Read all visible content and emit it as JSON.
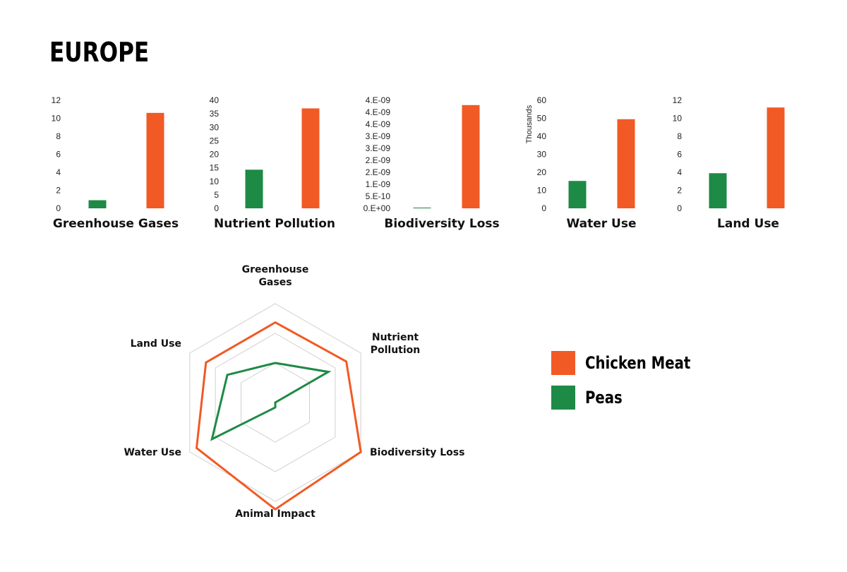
{
  "page": {
    "title": "EUROPE"
  },
  "colors": {
    "chicken": "#f15a24",
    "peas": "#1d8a45",
    "grid": "#d0d0d0"
  },
  "legend": [
    {
      "name": "Chicken Meat",
      "color": "#f15a24"
    },
    {
      "name": "Peas",
      "color": "#1d8a45"
    }
  ],
  "chart_data": [
    {
      "type": "bar",
      "title": "Greenhouse Gases",
      "categories": [
        "Peas",
        "Chicken Meat"
      ],
      "values": [
        0.9,
        10.6
      ],
      "ylim": [
        0,
        12
      ],
      "yticks": [
        "0",
        "2",
        "4",
        "6",
        "8",
        "10",
        "12"
      ],
      "ylabel": ""
    },
    {
      "type": "bar",
      "title": "Nutrient Pollution",
      "categories": [
        "Peas",
        "Chicken Meat"
      ],
      "values": [
        14.3,
        37
      ],
      "ylim": [
        0,
        40
      ],
      "yticks": [
        "0",
        "5",
        "10",
        "15",
        "20",
        "25",
        "30",
        "35",
        "40"
      ],
      "ylabel": ""
    },
    {
      "type": "bar",
      "title": "Biodiversity Loss",
      "categories": [
        "Peas",
        "Chicken Meat"
      ],
      "values": [
        0.03,
        4.3
      ],
      "ylim": [
        0,
        4.5
      ],
      "yticks": [
        "0.E+00",
        "5.E-10",
        "1.E-09",
        "2.E-09",
        "2.E-09",
        "3.E-09",
        "3.E-09",
        "4.E-09",
        "4.E-09",
        "4.E-09"
      ],
      "ylabel": ""
    },
    {
      "type": "bar",
      "title": "Water Use",
      "categories": [
        "Peas",
        "Chicken Meat"
      ],
      "values": [
        15.2,
        49.5
      ],
      "ylim": [
        0,
        60
      ],
      "yticks": [
        "0",
        "10",
        "20",
        "30",
        "40",
        "50",
        "60"
      ],
      "ylabel": "Thousands"
    },
    {
      "type": "bar",
      "title": "Land Use",
      "categories": [
        "Peas",
        "Chicken Meat"
      ],
      "values": [
        3.9,
        11.2
      ],
      "ylim": [
        0,
        12
      ],
      "yticks": [
        "0",
        "2",
        "4",
        "6",
        "8",
        "10",
        "12"
      ],
      "ylabel": ""
    },
    {
      "type": "radar",
      "axes": [
        "Greenhouse Gases",
        "Nutrient Pollution",
        "Biodiversity Loss",
        "Animal Impact",
        "Water Use",
        "Land Use"
      ],
      "rlim": [
        0,
        1
      ],
      "grid_levels": [
        0.4,
        0.7,
        1.0
      ],
      "series": [
        {
          "name": "Chicken Meat",
          "values": [
            0.81,
            0.83,
            1.0,
            1.08,
            0.92,
            0.81
          ]
        },
        {
          "name": "Peas",
          "values": [
            0.4,
            0.62,
            0.0,
            0.05,
            0.74,
            0.56
          ]
        }
      ]
    }
  ]
}
